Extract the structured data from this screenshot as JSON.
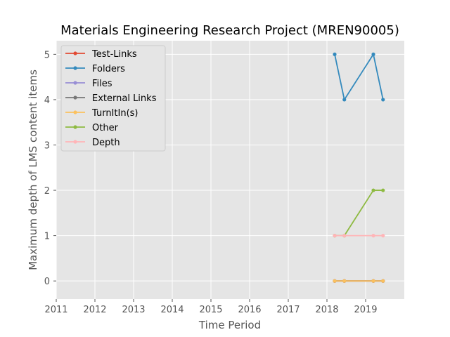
{
  "chart_data": {
    "type": "line",
    "title": "Materials Engineering Research Project (MREN90005)",
    "xlabel": "Time Period",
    "ylabel": "Maximum depth of LMS content items",
    "xlim": [
      2011,
      2020
    ],
    "ylim": [
      -0.4,
      5.3
    ],
    "xticks": [
      2011,
      2012,
      2013,
      2014,
      2015,
      2016,
      2017,
      2018,
      2019
    ],
    "yticks": [
      0,
      1,
      2,
      3,
      4,
      5
    ],
    "grid": true,
    "legend_position": "top-left",
    "x": [
      2018.2,
      2018.45,
      2019.2,
      2019.45
    ],
    "series": [
      {
        "name": "Test-Links",
        "color": "#E24A33",
        "values": [
          0,
          0,
          0,
          0
        ]
      },
      {
        "name": "Folders",
        "color": "#348ABD",
        "values": [
          5,
          4,
          5,
          4
        ]
      },
      {
        "name": "Files",
        "color": "#988ED5",
        "values": [
          0,
          0,
          0,
          0
        ]
      },
      {
        "name": "External Links",
        "color": "#777777",
        "values": [
          0,
          0,
          0,
          0
        ]
      },
      {
        "name": "TurnItIn(s)",
        "color": "#FBC15E",
        "values": [
          0,
          0,
          0,
          0
        ]
      },
      {
        "name": "Other",
        "color": "#8EBA42",
        "values": [
          1,
          1,
          2,
          2
        ]
      },
      {
        "name": "Depth",
        "color": "#FFB5B8",
        "values": [
          1,
          1,
          1,
          1
        ]
      }
    ]
  }
}
